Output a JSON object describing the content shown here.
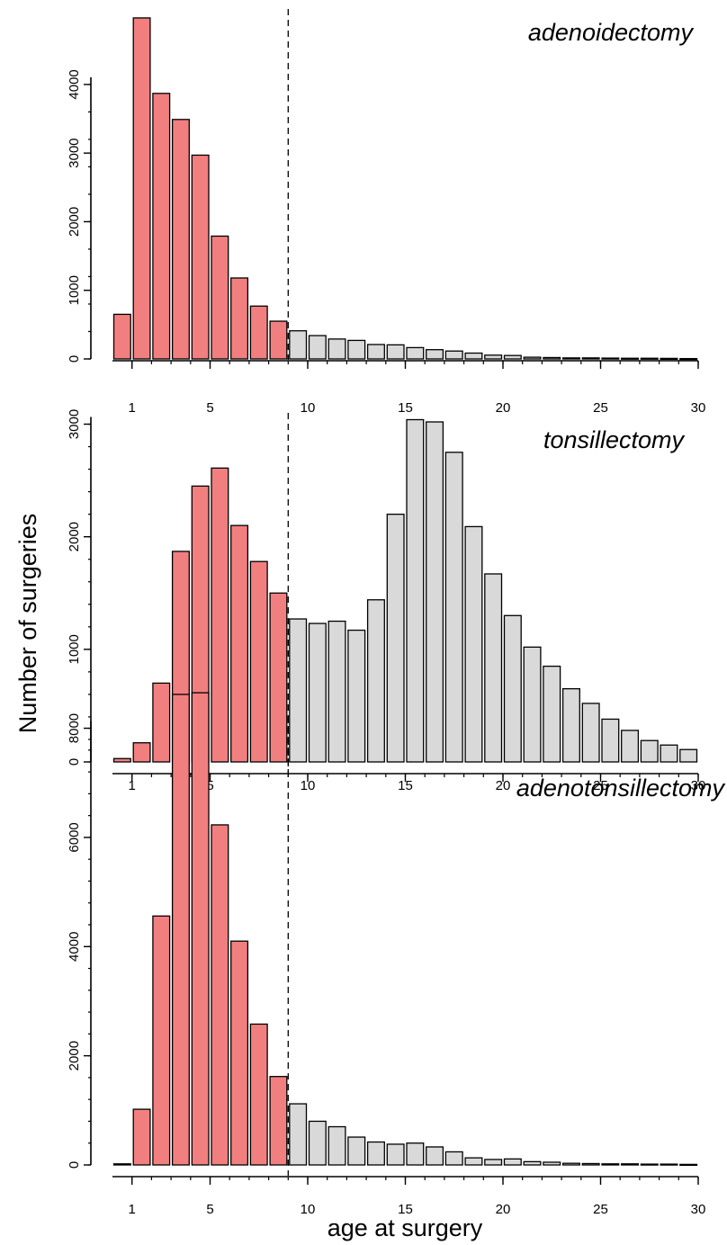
{
  "figure": {
    "ylabel": "Number of surgeries",
    "xlabel": "age at surgery"
  },
  "colors": {
    "before_cutoff": "#f27f7f",
    "after_cutoff": "#d9d9d9",
    "outline": "#000000"
  },
  "chart_data": [
    {
      "type": "bar",
      "title": "adenoidectomy",
      "x": [
        0,
        1,
        2,
        3,
        4,
        5,
        6,
        7,
        8,
        9,
        10,
        11,
        12,
        13,
        14,
        15,
        16,
        17,
        18,
        19,
        20,
        21,
        22,
        23,
        24,
        25,
        26,
        27,
        28,
        29
      ],
      "values": [
        650,
        4970,
        3870,
        3490,
        2970,
        1790,
        1180,
        770,
        550,
        410,
        340,
        290,
        270,
        210,
        205,
        165,
        135,
        115,
        85,
        55,
        50,
        25,
        20,
        15,
        15,
        12,
        10,
        10,
        8,
        5
      ],
      "xlim": [
        0,
        30
      ],
      "ylim": [
        0,
        5100
      ],
      "xticks": [
        1,
        5,
        10,
        15,
        20,
        25,
        30
      ],
      "yticks": [
        0,
        1000,
        2000,
        3000,
        4000
      ],
      "cutoff_age": 9
    },
    {
      "type": "bar",
      "title": "tonsillectomy",
      "x": [
        0,
        1,
        2,
        3,
        4,
        5,
        6,
        7,
        8,
        9,
        10,
        11,
        12,
        13,
        14,
        15,
        16,
        17,
        18,
        19,
        20,
        21,
        22,
        23,
        24,
        25,
        26,
        27,
        28,
        29
      ],
      "values": [
        30,
        170,
        700,
        1870,
        2450,
        2610,
        2100,
        1780,
        1500,
        1270,
        1230,
        1250,
        1170,
        1440,
        2200,
        3040,
        3020,
        2750,
        2090,
        1670,
        1300,
        1020,
        850,
        650,
        520,
        380,
        280,
        190,
        150,
        110
      ],
      "xlim": [
        0,
        30
      ],
      "ylim": [
        0,
        3100
      ],
      "xticks": [
        1,
        5,
        10,
        15,
        20,
        25,
        30
      ],
      "yticks": [
        0,
        1000,
        2000,
        3000
      ],
      "cutoff_age": 9
    },
    {
      "type": "bar",
      "title": "adenotonsillectomy",
      "x": [
        0,
        1,
        2,
        3,
        4,
        5,
        6,
        7,
        8,
        9,
        10,
        11,
        12,
        13,
        14,
        15,
        16,
        17,
        18,
        19,
        20,
        21,
        22,
        23,
        24,
        25,
        26,
        27,
        28,
        29
      ],
      "values": [
        20,
        1020,
        4560,
        8620,
        8650,
        6230,
        4100,
        2580,
        1620,
        1120,
        800,
        700,
        510,
        420,
        380,
        400,
        330,
        240,
        130,
        100,
        110,
        60,
        50,
        30,
        25,
        20,
        20,
        15,
        15,
        10
      ],
      "xlim": [
        0,
        30
      ],
      "ylim": [
        0,
        8800
      ],
      "xticks": [
        1,
        5,
        10,
        15,
        20,
        25,
        30
      ],
      "yticks": [
        0,
        2000,
        4000,
        6000,
        8000
      ],
      "cutoff_age": 9
    }
  ]
}
